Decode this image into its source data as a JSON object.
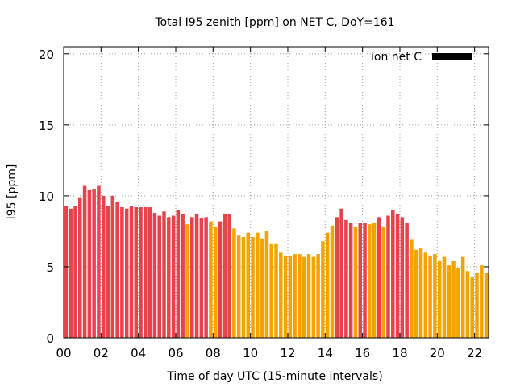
{
  "chart_data": {
    "type": "bar",
    "title": "Total I95 zenith [ppm] on NET C, DoY=161",
    "xlabel": "Time of day UTC (15-minute intervals)",
    "ylabel": "I95 [ppm]",
    "xlim": [
      0,
      22.75
    ],
    "ylim": [
      0,
      20.5
    ],
    "x_ticks": [
      0,
      2,
      4,
      6,
      8,
      10,
      12,
      14,
      16,
      18,
      20,
      22
    ],
    "x_tick_labels": [
      "00",
      "02",
      "04",
      "06",
      "08",
      "10",
      "12",
      "14",
      "16",
      "18",
      "20",
      "22"
    ],
    "y_ticks": [
      0,
      5,
      10,
      15,
      20
    ],
    "y_tick_labels": [
      "0",
      "5",
      "10",
      "15",
      "20"
    ],
    "grid": true,
    "legend": {
      "label": "ion net C",
      "position": "top-right",
      "color": "#000000"
    },
    "colors": {
      "red": "#e8434a",
      "orange": "#f5a300"
    },
    "bar_interval_hours": 0.25,
    "bar_start_hour": 0,
    "values": [
      9.3,
      9.1,
      9.3,
      9.9,
      10.7,
      10.4,
      10.5,
      10.7,
      10.0,
      9.3,
      10.0,
      9.6,
      9.2,
      9.1,
      9.3,
      9.2,
      9.2,
      9.2,
      9.2,
      8.8,
      8.6,
      8.9,
      8.5,
      8.6,
      9.0,
      8.7,
      8.0,
      8.5,
      8.7,
      8.4,
      8.5,
      8.2,
      7.8,
      8.2,
      8.7,
      8.7,
      7.7,
      7.2,
      7.1,
      7.4,
      7.1,
      7.4,
      7.0,
      7.5,
      6.6,
      6.6,
      6.0,
      5.8,
      5.8,
      5.9,
      5.9,
      5.7,
      5.9,
      5.7,
      5.9,
      6.8,
      7.4,
      7.9,
      8.5,
      9.1,
      8.3,
      8.1,
      7.8,
      8.1,
      8.1,
      8.0,
      8.1,
      8.5,
      7.8,
      8.6,
      9.0,
      8.7,
      8.5,
      8.1,
      6.9,
      6.2,
      6.3,
      6.0,
      5.8,
      5.9,
      5.4,
      5.7,
      5.1,
      5.4,
      4.9,
      5.7,
      4.7,
      4.3,
      4.6,
      5.1,
      4.6
    ],
    "bar_colors": [
      "red",
      "red",
      "red",
      "red",
      "red",
      "red",
      "red",
      "red",
      "red",
      "red",
      "red",
      "red",
      "red",
      "red",
      "red",
      "red",
      "red",
      "red",
      "red",
      "red",
      "red",
      "red",
      "red",
      "red",
      "red",
      "red",
      "orange",
      "red",
      "red",
      "red",
      "red",
      "orange",
      "orange",
      "red",
      "red",
      "red",
      "orange",
      "orange",
      "orange",
      "orange",
      "orange",
      "orange",
      "orange",
      "orange",
      "orange",
      "orange",
      "orange",
      "orange",
      "orange",
      "orange",
      "orange",
      "orange",
      "orange",
      "orange",
      "orange",
      "orange",
      "orange",
      "orange",
      "red",
      "red",
      "red",
      "red",
      "orange",
      "red",
      "red",
      "orange",
      "orange",
      "red",
      "orange",
      "red",
      "red",
      "red",
      "red",
      "red",
      "orange",
      "orange",
      "orange",
      "orange",
      "orange",
      "orange",
      "orange",
      "orange",
      "orange",
      "orange",
      "orange",
      "orange",
      "orange",
      "orange",
      "orange",
      "orange",
      "orange"
    ]
  }
}
